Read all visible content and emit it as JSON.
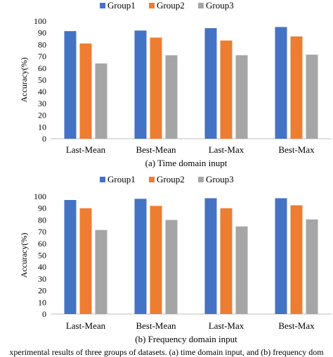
{
  "colors": {
    "group1": "#4472C4",
    "group2": "#ED7D31",
    "group3": "#A5A5A5"
  },
  "chart_data": [
    {
      "type": "bar",
      "subtitle": "(a) Time domain inupt",
      "categories": [
        "Last-Mean",
        "Best-Mean",
        "Last-Max",
        "Best-Max"
      ],
      "series": [
        {
          "name": "Group1",
          "values": [
            91.5,
            92,
            94,
            95
          ]
        },
        {
          "name": "Group2",
          "values": [
            81,
            86,
            83.5,
            87
          ]
        },
        {
          "name": "Group3",
          "values": [
            64,
            71,
            71,
            71.5
          ]
        }
      ],
      "ylabel": "Accuracy(%)",
      "ylim": [
        0,
        100
      ],
      "yticks": [
        0,
        10,
        20,
        30,
        40,
        50,
        60,
        70,
        80,
        90,
        100
      ],
      "grid": false,
      "legend": "top"
    },
    {
      "type": "bar",
      "subtitle": "(b) Frequency domain input",
      "categories": [
        "Last-Mean",
        "Best-Mean",
        "Last-Max",
        "Best-Max"
      ],
      "series": [
        {
          "name": "Group1",
          "values": [
            97,
            98,
            98.5,
            98.5
          ]
        },
        {
          "name": "Group2",
          "values": [
            90,
            92,
            90,
            92.5
          ]
        },
        {
          "name": "Group3",
          "values": [
            71.5,
            80,
            74.5,
            80.5
          ]
        }
      ],
      "ylabel": "Accuracy(%)",
      "ylim": [
        0,
        100
      ],
      "yticks": [
        0,
        10,
        20,
        30,
        40,
        50,
        60,
        70,
        80,
        90,
        100
      ],
      "grid": false,
      "legend": "top"
    }
  ],
  "caption": "xperimental results of three groups of datasets. (a) time domain input, and (b) frequency dom"
}
